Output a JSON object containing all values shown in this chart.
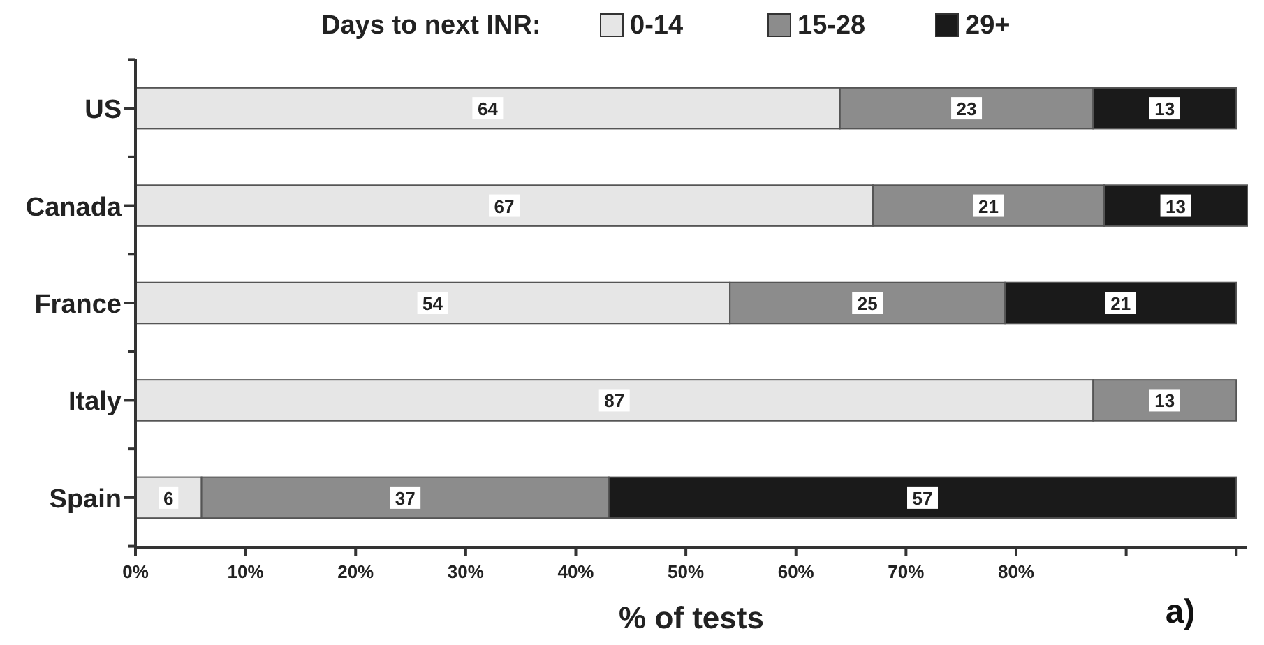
{
  "chart_data": {
    "type": "bar",
    "orientation": "horizontal",
    "stacked": true,
    "legend_title": "Days to next INR:",
    "xlabel": "% of tests",
    "categories": [
      "US",
      "Canada",
      "France",
      "Italy",
      "Spain"
    ],
    "series": [
      {
        "name": "0-14",
        "color": "#e6e6e6",
        "values": [
          64,
          67,
          54,
          87,
          6
        ]
      },
      {
        "name": "15-28",
        "color": "#8c8c8c",
        "values": [
          23,
          21,
          25,
          13,
          37
        ]
      },
      {
        "name": "29+",
        "color": "#1a1a1a",
        "values": [
          13,
          13,
          21,
          null,
          57
        ]
      }
    ],
    "xlim": [
      0,
      101
    ],
    "xticks": [
      {
        "value": 0,
        "label": "0%"
      },
      {
        "value": 10,
        "label": "10%"
      },
      {
        "value": 20,
        "label": "20%"
      },
      {
        "value": 30,
        "label": "30%"
      },
      {
        "value": 40,
        "label": "40%"
      },
      {
        "value": 50,
        "label": "50%"
      },
      {
        "value": 60,
        "label": "60%"
      },
      {
        "value": 70,
        "label": "70%"
      },
      {
        "value": 80,
        "label": "80%"
      },
      {
        "value": 90,
        "label": null
      },
      {
        "value": 100,
        "label": null
      }
    ],
    "data_labels": true,
    "legend": "top",
    "annotations": [
      "a)"
    ]
  }
}
